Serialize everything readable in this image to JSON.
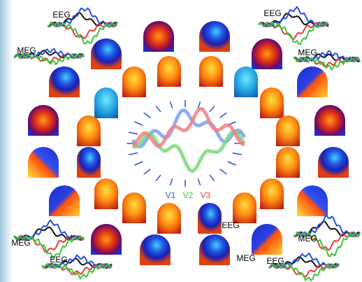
{
  "panels": [
    {
      "name": "top-left",
      "labels": [
        "EEG",
        "MEG"
      ]
    },
    {
      "name": "top-right",
      "labels": [
        "EEG",
        "MEG"
      ]
    },
    {
      "name": "bottom-left",
      "labels": [
        "MEG",
        "EEG"
      ]
    },
    {
      "name": "bottom-right",
      "labels": [
        "MEG",
        "EEG"
      ]
    },
    {
      "name": "center-bottom",
      "labels": [
        "EEG",
        "MEG"
      ]
    }
  ],
  "legend": [
    {
      "text": "V1",
      "color": "#3a5bd9"
    },
    {
      "text": "V2",
      "color": "#3cc43c"
    },
    {
      "text": "V3",
      "color": "#e83a3a"
    }
  ]
}
